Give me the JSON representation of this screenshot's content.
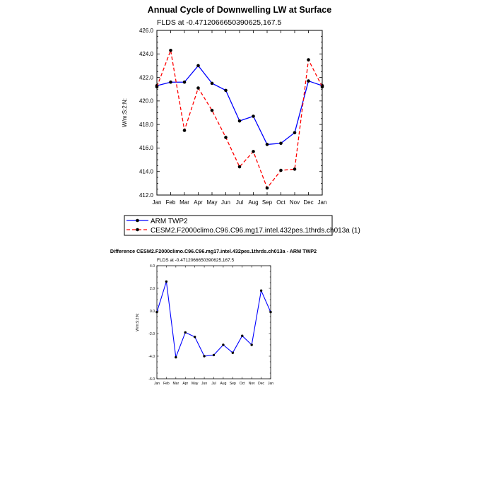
{
  "colors": {
    "series1": "#0000ff",
    "series2": "#ff0000",
    "axis": "#000000",
    "marker": "#000000"
  },
  "chart_data": [
    {
      "type": "line",
      "title": "Annual Cycle of Downwelling LW at Surface",
      "subtitle": "FLDS at -0.4712066650390625,167.5",
      "ylabel": "W/m:S:2:N:",
      "xlabel": "",
      "categories": [
        "Jan",
        "Feb",
        "Mar",
        "Apr",
        "May",
        "Jun",
        "Jul",
        "Aug",
        "Sep",
        "Oct",
        "Nov",
        "Dec",
        "Jan"
      ],
      "ylim": [
        412.0,
        426.0
      ],
      "yticks": [
        "412.0",
        "414.0",
        "416.0",
        "418.0",
        "420.0",
        "422.0",
        "424.0",
        "426.0"
      ],
      "grid": false,
      "legend_position": "below",
      "series": [
        {
          "name": "ARM TWP2",
          "style": "solid",
          "color": "#0000ff",
          "values": [
            421.3,
            421.6,
            421.6,
            423.0,
            421.5,
            420.9,
            418.3,
            418.7,
            416.3,
            416.4,
            417.3,
            421.7,
            421.3
          ]
        },
        {
          "name": "CESM2.F2000climo.C96.C96.mg17.intel.432pes.1thrds.ch013a (1)",
          "style": "dashed",
          "color": "#ff0000",
          "values": [
            421.2,
            424.3,
            417.5,
            421.1,
            419.2,
            416.9,
            414.4,
            415.7,
            412.6,
            414.1,
            414.2,
            423.5,
            421.2
          ]
        }
      ]
    },
    {
      "type": "line",
      "title": "Difference CESM2.F2000climo.C96.C96.mg17.intel.432pes.1thrds.ch013a - ARM TWP2",
      "subtitle": "FLDS at -0.4712066650390625,167.5",
      "ylabel": "W/m:S:2:N:",
      "xlabel": "",
      "categories": [
        "Jan",
        "Feb",
        "Mar",
        "Apr",
        "May",
        "Jun",
        "Jul",
        "Aug",
        "Sep",
        "Oct",
        "Nov",
        "Dec",
        "Jan"
      ],
      "ylim": [
        -6.0,
        4.0
      ],
      "yticks": [
        "-6.0",
        "-4.0",
        "-2.0",
        "0.0",
        "2.0",
        "4.0"
      ],
      "grid": false,
      "series": [
        {
          "style": "solid",
          "color": "#0000ff",
          "values": [
            -0.1,
            2.6,
            -4.1,
            -1.9,
            -2.3,
            -4.0,
            -3.9,
            -3.0,
            -3.7,
            -2.2,
            -3.0,
            1.8,
            -0.1
          ]
        }
      ]
    }
  ]
}
